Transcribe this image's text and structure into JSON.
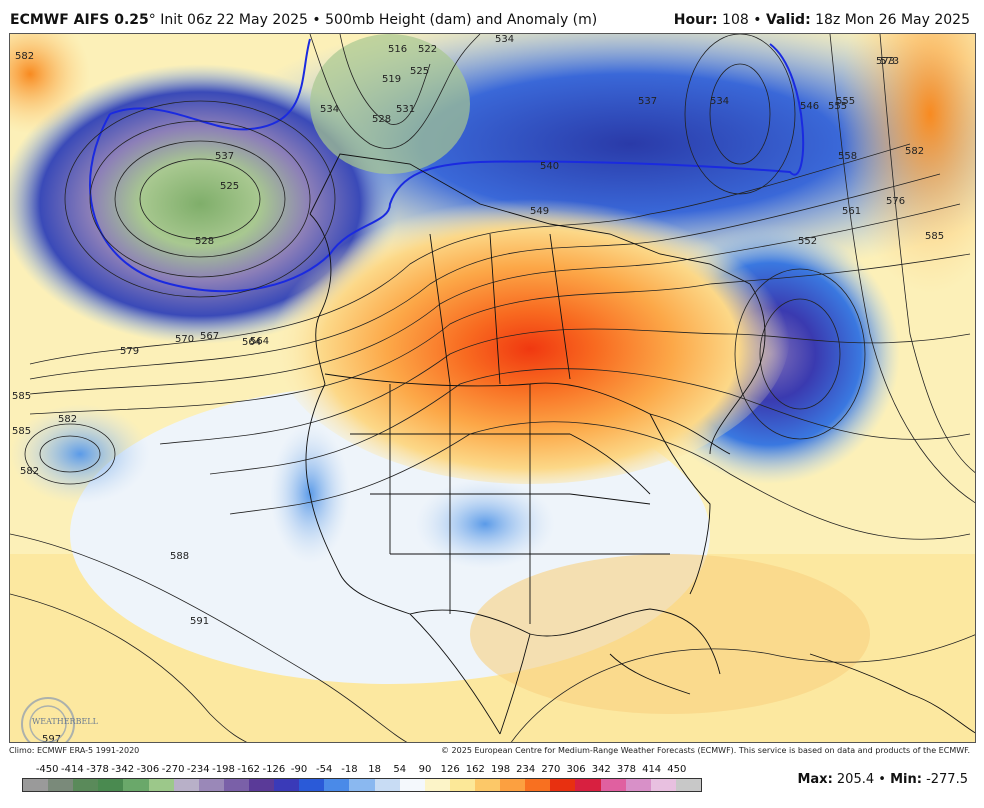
{
  "header": {
    "model": "ECMWF AIFS 0.25",
    "degree": "°",
    "init": "Init 06z 22 May 2025",
    "bullet": "•",
    "field": "500mb Height (dam) and Anomaly (m)",
    "hour_label": "Hour:",
    "hour_value": "108",
    "valid_label": "Valid:",
    "valid_value": "18z Mon 26 May 2025"
  },
  "credits": {
    "climo": "Climo: ECMWF ERA-5 1991-2020",
    "copyright": "© 2025 European Centre for Medium-Range Weather Forecasts (ECMWF). This service is based on data and products of the ECMWF.",
    "logo_text": "WEATHERBELL"
  },
  "stats": {
    "max_label": "Max:",
    "max_value": "205.4",
    "min_label": "Min:",
    "min_value": "-277.5"
  },
  "scale": {
    "ticks": [
      "-450",
      "-414",
      "-378",
      "-342",
      "-306",
      "-270",
      "-234",
      "-198",
      "-162",
      "-126",
      "-90",
      "-54",
      "-18",
      "18",
      "54",
      "90",
      "126",
      "162",
      "198",
      "234",
      "270",
      "306",
      "342",
      "378",
      "414",
      "450"
    ],
    "colors": [
      "#9a9a9a",
      "#7a8a7a",
      "#5a8a5a",
      "#4a8a50",
      "#6aa86a",
      "#9cc88a",
      "#b8b0c8",
      "#9a88b8",
      "#7a60a8",
      "#5a3a98",
      "#3a3ab8",
      "#2a5ad8",
      "#4a8ae8",
      "#8ab8f0",
      "#c8dcf4",
      "#f4f8fc",
      "#fcf4c8",
      "#fce898",
      "#fcc868",
      "#fca040",
      "#f87020",
      "#e83010",
      "#d82040",
      "#e060a0",
      "#d890c8",
      "#e8c0e0",
      "#c8c8c8"
    ]
  },
  "map": {
    "contour_labels": [
      "582",
      "516",
      "519",
      "522",
      "525",
      "528",
      "531",
      "534",
      "537",
      "540",
      "546",
      "549",
      "552",
      "555",
      "558",
      "561",
      "564",
      "567",
      "570",
      "573",
      "576",
      "579",
      "582",
      "585",
      "588",
      "591",
      "597",
      "525",
      "528",
      "534",
      "537",
      "534",
      "555",
      "573",
      "582",
      "585",
      "582",
      "585",
      "564"
    ]
  }
}
